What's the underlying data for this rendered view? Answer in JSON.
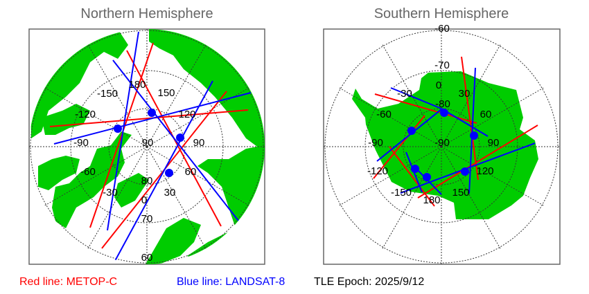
{
  "north": {
    "title": "Northern Hemisphere",
    "labels": [
      "180",
      "150",
      "-150",
      "120",
      "-120",
      "90",
      "-90",
      "90",
      "60",
      "-60",
      "80",
      "30",
      "-30",
      "0",
      "70",
      "60"
    ]
  },
  "south": {
    "title": "Southern Hemisphere",
    "labels": [
      "-60",
      "-70",
      "0",
      "-30",
      "30",
      "-80",
      "-60",
      "60",
      "-90",
      "-90",
      "90",
      "-120",
      "120",
      "-150",
      "150",
      "180"
    ]
  },
  "legend": {
    "red": "Red line: METOP-C",
    "blue": "Blue line: LANDSAT-8",
    "epoch": "TLE Epoch: 2025/9/12"
  },
  "colors": {
    "land": "#00cc00",
    "red_track": "#ff0000",
    "blue_track": "#0000ff",
    "title": "#666666"
  }
}
